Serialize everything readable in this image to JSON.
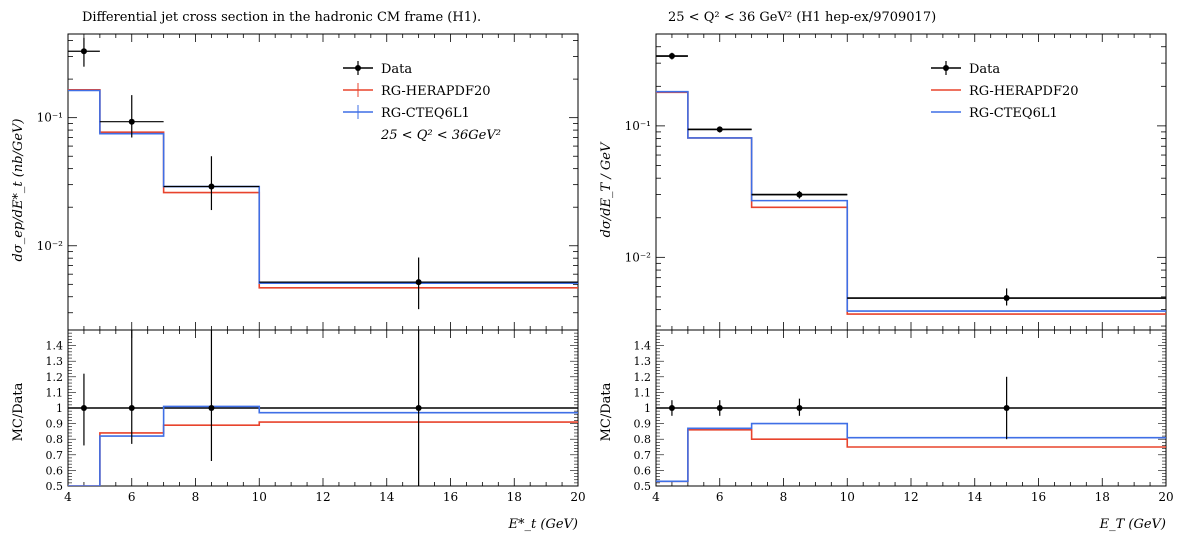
{
  "chart_data": [
    {
      "type": "line",
      "title": "Differential jet cross section in the hadronic CM frame (H1).",
      "ylabel": "dσ_ep/dE*_t (nb/GeV)",
      "xlabel": "E*_t (GeV)",
      "ratio_ylabel": "MC/Data",
      "y_scale": "log",
      "ylim": [
        0.0022,
        0.45
      ],
      "xlim": [
        4,
        20
      ],
      "ratio_ylim": [
        0.5,
        1.5
      ],
      "x_ticks": [
        "4",
        "6",
        "8",
        "10",
        "12",
        "14",
        "16",
        "18",
        "20"
      ],
      "y_ticks": [
        "10⁻¹",
        "10⁻²"
      ],
      "ratio_ticks": [
        "0.5",
        "0.6",
        "0.7",
        "0.8",
        "0.9",
        "1",
        "1.1",
        "1.2",
        "1.3",
        "1.4"
      ],
      "legend": {
        "position": "top-right",
        "extra_text": "25 < Q² < 36GeV²"
      },
      "series": [
        {
          "name": "Data",
          "kind": "points",
          "color": "#000000",
          "x": [
            4.5,
            6,
            8.5,
            15
          ],
          "xerr": [
            [
              4,
              5
            ],
            [
              5,
              7
            ],
            [
              7,
              10
            ],
            [
              10,
              20
            ]
          ],
          "y": [
            0.33,
            0.093,
            0.029,
            0.0052
          ],
          "yerr": [
            [
              0.25,
              0.42
            ],
            [
              0.07,
              0.15
            ],
            [
              0.019,
              0.05
            ],
            [
              0.0032,
              0.0081
            ]
          ]
        },
        {
          "name": "RG-HERAPDF20",
          "kind": "hist",
          "color": "#e8432c",
          "edges": [
            4,
            5,
            7,
            10,
            20
          ],
          "values": [
            0.165,
            0.077,
            0.026,
            0.0047
          ]
        },
        {
          "name": "RG-CTEQ6L1",
          "kind": "hist",
          "color": "#3f6fe6",
          "edges": [
            4,
            5,
            7,
            10,
            20
          ],
          "values": [
            0.163,
            0.075,
            0.029,
            0.0051
          ]
        }
      ],
      "ratio_series": [
        {
          "name": "Data",
          "kind": "points",
          "color": "#000000",
          "x": [
            4.5,
            6,
            8.5,
            15
          ],
          "xerr": [
            [
              4,
              5
            ],
            [
              5,
              7
            ],
            [
              7,
              10
            ],
            [
              10,
              20
            ]
          ],
          "y": [
            1,
            1,
            1,
            1
          ],
          "yerr": [
            [
              0.76,
              1.22
            ],
            [
              0.77,
              1.6
            ],
            [
              0.66,
              1.6
            ],
            [
              0.5,
              1.6
            ]
          ],
          "band": [
            [
              4,
              20
            ]
          ]
        },
        {
          "name": "RG-HERAPDF20",
          "kind": "hist",
          "color": "#e8432c",
          "edges": [
            4,
            5,
            7,
            10,
            20
          ],
          "values": [
            0.5,
            0.84,
            0.89,
            0.91
          ]
        },
        {
          "name": "RG-CTEQ6L1",
          "kind": "hist",
          "color": "#3f6fe6",
          "edges": [
            4,
            5,
            7,
            10,
            20
          ],
          "values": [
            0.5,
            0.82,
            1.01,
            0.97
          ]
        }
      ]
    },
    {
      "type": "line",
      "title": "25 < Q² < 36 GeV² (H1 hep-ex/9709017)",
      "ylabel": "dσ/dE_T / GeV",
      "xlabel": "E_T (GeV)",
      "ratio_ylabel": "MC/Data",
      "y_scale": "log",
      "ylim": [
        0.0028,
        0.5
      ],
      "xlim": [
        4,
        20
      ],
      "ratio_ylim": [
        0.5,
        1.5
      ],
      "x_ticks": [
        "4",
        "6",
        "8",
        "10",
        "12",
        "14",
        "16",
        "18",
        "20"
      ],
      "y_ticks": [
        "10⁻¹",
        "10⁻²"
      ],
      "ratio_ticks": [
        "0.5",
        "0.6",
        "0.7",
        "0.8",
        "0.9",
        "1",
        "1.1",
        "1.2",
        "1.3",
        "1.4"
      ],
      "legend": {
        "position": "top-right",
        "extra_text": ""
      },
      "series": [
        {
          "name": "Data",
          "kind": "points",
          "color": "#000000",
          "x": [
            4.5,
            6,
            8.5,
            15
          ],
          "xerr": [
            [
              4,
              5
            ],
            [
              5,
              7
            ],
            [
              7,
              10
            ],
            [
              10,
              20
            ]
          ],
          "y": [
            0.34,
            0.094,
            0.03,
            0.0049
          ],
          "yerr": [
            [
              0.32,
              0.36
            ],
            [
              0.089,
              0.099
            ],
            [
              0.028,
              0.032
            ],
            [
              0.0043,
              0.0058
            ]
          ],
          "step_line": true
        },
        {
          "name": "RG-HERAPDF20",
          "kind": "hist",
          "color": "#e8432c",
          "edges": [
            4,
            5,
            7,
            10,
            20
          ],
          "values": [
            0.18,
            0.081,
            0.024,
            0.0037
          ]
        },
        {
          "name": "RG-CTEQ6L1",
          "kind": "hist",
          "color": "#3f6fe6",
          "edges": [
            4,
            5,
            7,
            10,
            20
          ],
          "values": [
            0.182,
            0.081,
            0.027,
            0.0039
          ]
        }
      ],
      "ratio_series": [
        {
          "name": "Data",
          "kind": "points",
          "color": "#000000",
          "x": [
            4.5,
            6,
            8.5,
            15
          ],
          "xerr": [
            [
              4,
              5
            ],
            [
              5,
              7
            ],
            [
              7,
              10
            ],
            [
              10,
              20
            ]
          ],
          "y": [
            1,
            1,
            1,
            1
          ],
          "yerr": [
            [
              0.95,
              1.05
            ],
            [
              0.95,
              1.05
            ],
            [
              0.95,
              1.06
            ],
            [
              0.8,
              1.2
            ]
          ],
          "band": [
            [
              4,
              20
            ]
          ]
        },
        {
          "name": "RG-HERAPDF20",
          "kind": "hist",
          "color": "#e8432c",
          "edges": [
            4,
            5,
            7,
            10,
            20
          ],
          "values": [
            0.53,
            0.86,
            0.8,
            0.75
          ]
        },
        {
          "name": "RG-CTEQ6L1",
          "kind": "hist",
          "color": "#3f6fe6",
          "edges": [
            4,
            5,
            7,
            10,
            20
          ],
          "values": [
            0.53,
            0.87,
            0.9,
            0.81
          ]
        }
      ]
    }
  ]
}
